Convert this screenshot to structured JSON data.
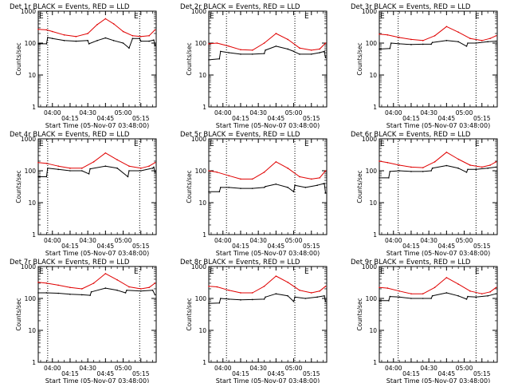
{
  "figure": {
    "background": "#ffffff",
    "axis_color": "#000000",
    "events_color": "#000000",
    "lld_color": "#e00000"
  },
  "chart_data": [
    {
      "type": "line",
      "title": "Det 1r BLACK = Events, RED = LLD",
      "corner_labels": [
        "E",
        "E"
      ],
      "xlabel": "Start Time (05-Nov-07 03:48:00)",
      "ylabel": "Counts/sec",
      "yscale": "log",
      "ylim": [
        1,
        1000
      ],
      "xlim": [
        "03:48:00",
        "05:28:00"
      ],
      "xticks": [
        "04:00",
        "04:15",
        "04:30",
        "04:45",
        "05:00",
        "05:15"
      ],
      "yticks": [
        "1",
        "10",
        "100",
        "1000"
      ],
      "vlines": [
        "03:56:00",
        "05:14:00"
      ],
      "series": [
        {
          "name": "Events",
          "color": "#000000",
          "x": [
            "03:48",
            "03:55",
            "03:56",
            "04:00",
            "04:10",
            "04:20",
            "04:30",
            "04:31",
            "04:38",
            "04:45",
            "04:52",
            "05:00",
            "05:05",
            "05:08",
            "05:14",
            "05:15",
            "05:22",
            "05:26",
            "05:27"
          ],
          "y": [
            95,
            95,
            150,
            140,
            120,
            115,
            120,
            95,
            120,
            145,
            120,
            100,
            70,
            140,
            140,
            115,
            115,
            125,
            85
          ]
        },
        {
          "name": "LLD",
          "color": "#e00000",
          "x": [
            "03:48",
            "03:55",
            "04:00",
            "04:10",
            "04:20",
            "04:30",
            "04:38",
            "04:45",
            "04:52",
            "05:00",
            "05:08",
            "05:15",
            "05:22",
            "05:27"
          ],
          "y": [
            270,
            260,
            230,
            180,
            160,
            200,
            380,
            580,
            400,
            230,
            170,
            160,
            170,
            260
          ]
        }
      ]
    },
    {
      "type": "line",
      "title": "Det 2r BLACK = Events, RED = LLD",
      "corner_labels": [
        "E",
        "E"
      ],
      "xlabel": "Start Time (05-Nov-07 03:48:00)",
      "ylabel": "Counts/sec",
      "yscale": "log",
      "ylim": [
        1,
        1000
      ],
      "xlim": [
        "03:48:00",
        "05:28:00"
      ],
      "xticks": [
        "04:00",
        "04:15",
        "04:30",
        "04:45",
        "05:00",
        "05:15"
      ],
      "yticks": [
        "1",
        "10",
        "100",
        "1000"
      ],
      "vlines": [
        "04:03:00",
        "05:01:00"
      ],
      "series": [
        {
          "name": "Events",
          "color": "#000000",
          "x": [
            "03:48",
            "03:57",
            "03:58",
            "04:05",
            "04:15",
            "04:25",
            "04:35",
            "04:36",
            "04:45",
            "04:55",
            "05:00",
            "05:05",
            "05:15",
            "05:22",
            "05:26",
            "05:27"
          ],
          "y": [
            30,
            32,
            55,
            50,
            45,
            45,
            47,
            60,
            80,
            65,
            55,
            45,
            45,
            50,
            55,
            35
          ]
        },
        {
          "name": "LLD",
          "color": "#e00000",
          "x": [
            "03:48",
            "03:55",
            "04:05",
            "04:15",
            "04:25",
            "04:35",
            "04:45",
            "04:55",
            "05:05",
            "05:15",
            "05:22",
            "05:27"
          ],
          "y": [
            95,
            100,
            80,
            62,
            60,
            100,
            200,
            130,
            70,
            60,
            65,
            100
          ]
        }
      ]
    },
    {
      "type": "line",
      "title": "Det 3r BLACK = Events, RED = LLD",
      "corner_labels": [
        "E",
        "E"
      ],
      "xlabel": "Start Time (05-Nov-07 03:48:00)",
      "ylabel": "Counts/sec",
      "yscale": "log",
      "ylim": [
        1,
        1000
      ],
      "xlim": [
        "03:48:00",
        "05:28:00"
      ],
      "xticks": [
        "04:00",
        "04:15",
        "04:30",
        "04:45",
        "05:00",
        "05:15"
      ],
      "yticks": [
        "1",
        "10",
        "100",
        "1000"
      ],
      "vlines": [
        "04:04:00",
        "05:10:00"
      ],
      "series": [
        {
          "name": "Events",
          "color": "#000000",
          "x": [
            "03:48",
            "03:57",
            "03:58",
            "04:05",
            "04:15",
            "04:25",
            "04:32",
            "04:33",
            "04:45",
            "04:55",
            "05:02",
            "05:03",
            "05:10",
            "05:20",
            "05:27"
          ],
          "y": [
            65,
            68,
            100,
            95,
            90,
            92,
            92,
            105,
            120,
            110,
            80,
            100,
            100,
            110,
            115
          ]
        },
        {
          "name": "LLD",
          "color": "#e00000",
          "x": [
            "03:48",
            "03:55",
            "04:05",
            "04:15",
            "04:25",
            "04:35",
            "04:45",
            "04:55",
            "05:05",
            "05:15",
            "05:22",
            "05:27"
          ],
          "y": [
            190,
            180,
            150,
            130,
            120,
            170,
            330,
            220,
            140,
            120,
            140,
            170
          ]
        }
      ]
    },
    {
      "type": "line",
      "title": "Det 4r BLACK = Events, RED = LLD",
      "corner_labels": [
        "E",
        "E"
      ],
      "xlabel": "Start Time (05-Nov-07 03:48:00)",
      "ylabel": "Counts/sec",
      "yscale": "log",
      "ylim": [
        1,
        1000
      ],
      "xlim": [
        "03:48:00",
        "05:28:00"
      ],
      "xticks": [
        "04:00",
        "04:15",
        "04:30",
        "04:45",
        "05:00",
        "05:15"
      ],
      "yticks": [
        "1",
        "10",
        "100",
        "1000"
      ],
      "vlines": [
        "03:56:00",
        "05:14:00"
      ],
      "series": [
        {
          "name": "Events",
          "color": "#000000",
          "x": [
            "03:48",
            "03:55",
            "03:56",
            "04:05",
            "04:15",
            "04:25",
            "04:31",
            "04:32",
            "04:45",
            "04:55",
            "05:04",
            "05:05",
            "05:15",
            "05:25",
            "05:26",
            "05:27"
          ],
          "y": [
            65,
            65,
            120,
            110,
            100,
            100,
            80,
            115,
            140,
            120,
            65,
            100,
            100,
            120,
            130,
            90
          ]
        },
        {
          "name": "LLD",
          "color": "#e00000",
          "x": [
            "03:48",
            "03:55",
            "04:05",
            "04:15",
            "04:25",
            "04:35",
            "04:45",
            "04:55",
            "05:05",
            "05:15",
            "05:22",
            "05:27"
          ],
          "y": [
            180,
            170,
            140,
            120,
            120,
            190,
            360,
            220,
            140,
            120,
            140,
            180
          ]
        }
      ]
    },
    {
      "type": "line",
      "title": "Det 5r BLACK = Events, RED = LLD",
      "corner_labels": [
        "E",
        "E"
      ],
      "xlabel": "Start Time (05-Nov-07 03:48:00)",
      "ylabel": "Counts/sec",
      "yscale": "log",
      "ylim": [
        1,
        1000
      ],
      "xlim": [
        "03:48:00",
        "05:28:00"
      ],
      "xticks": [
        "04:00",
        "04:15",
        "04:30",
        "04:45",
        "05:00",
        "05:15"
      ],
      "yticks": [
        "1",
        "10",
        "100",
        "1000"
      ],
      "vlines": [
        "04:03:00",
        "05:01:00"
      ],
      "series": [
        {
          "name": "Events",
          "color": "#000000",
          "x": [
            "03:48",
            "03:57",
            "03:58",
            "04:05",
            "04:15",
            "04:25",
            "04:35",
            "04:36",
            "04:45",
            "04:55",
            "05:00",
            "05:01",
            "05:10",
            "05:20",
            "05:26",
            "05:27"
          ],
          "y": [
            22,
            22,
            30,
            30,
            28,
            28,
            30,
            32,
            38,
            30,
            22,
            35,
            30,
            35,
            40,
            20
          ]
        },
        {
          "name": "LLD",
          "color": "#e00000",
          "x": [
            "03:48",
            "03:55",
            "04:05",
            "04:15",
            "04:25",
            "04:35",
            "04:45",
            "04:55",
            "05:05",
            "05:15",
            "05:22",
            "05:27"
          ],
          "y": [
            100,
            90,
            70,
            55,
            55,
            90,
            190,
            120,
            65,
            55,
            60,
            100
          ]
        }
      ]
    },
    {
      "type": "line",
      "title": "Det 6r BLACK = Events, RED = LLD",
      "corner_labels": [
        "E",
        "E"
      ],
      "xlabel": "Start Time (05-Nov-07 03:48:00)",
      "ylabel": "Counts/sec",
      "yscale": "log",
      "ylim": [
        1,
        1000
      ],
      "xlim": [
        "03:48:00",
        "05:28:00"
      ],
      "xticks": [
        "04:00",
        "04:15",
        "04:30",
        "04:45",
        "05:00",
        "05:15"
      ],
      "yticks": [
        "1",
        "10",
        "100",
        "1000"
      ],
      "vlines": [
        "04:04:00",
        "05:10:00"
      ],
      "series": [
        {
          "name": "Events",
          "color": "#000000",
          "x": [
            "03:48",
            "03:56",
            "03:57",
            "04:05",
            "04:15",
            "04:25",
            "04:32",
            "04:33",
            "04:45",
            "04:55",
            "05:02",
            "05:03",
            "05:10",
            "05:20",
            "05:27"
          ],
          "y": [
            60,
            60,
            95,
            100,
            95,
            95,
            100,
            120,
            145,
            120,
            90,
            110,
            110,
            120,
            130
          ]
        },
        {
          "name": "LLD",
          "color": "#e00000",
          "x": [
            "03:48",
            "03:55",
            "04:05",
            "04:15",
            "04:25",
            "04:35",
            "04:45",
            "04:55",
            "05:05",
            "05:15",
            "05:22",
            "05:27"
          ],
          "y": [
            200,
            180,
            150,
            130,
            125,
            190,
            380,
            230,
            150,
            130,
            150,
            190
          ]
        }
      ]
    },
    {
      "type": "line",
      "title": "Det 7r BLACK = Events, RED = LLD",
      "corner_labels": [
        "E",
        "E"
      ],
      "xlabel": "Start Time (05-Nov-07 03:48:00)",
      "ylabel": "Counts/sec",
      "yscale": "log",
      "ylim": [
        1,
        1000
      ],
      "xlim": [
        "03:48:00",
        "05:28:00"
      ],
      "xticks": [
        "04:00",
        "04:15",
        "04:30",
        "04:45",
        "05:00",
        "05:15"
      ],
      "yticks": [
        "1",
        "10",
        "100",
        "1000"
      ],
      "vlines": [
        "03:56:00",
        "05:14:00"
      ],
      "series": [
        {
          "name": "Events",
          "color": "#000000",
          "x": [
            "03:48",
            "03:55",
            "04:05",
            "04:15",
            "04:25",
            "04:32",
            "04:33",
            "04:45",
            "04:55",
            "05:02",
            "05:03",
            "05:15",
            "05:25",
            "05:27"
          ],
          "y": [
            150,
            150,
            145,
            135,
            130,
            125,
            160,
            210,
            180,
            150,
            180,
            170,
            180,
            130
          ]
        },
        {
          "name": "LLD",
          "color": "#e00000",
          "x": [
            "03:48",
            "03:55",
            "04:05",
            "04:15",
            "04:25",
            "04:35",
            "04:45",
            "04:55",
            "05:05",
            "05:15",
            "05:22",
            "05:27"
          ],
          "y": [
            320,
            300,
            260,
            220,
            200,
            300,
            600,
            380,
            230,
            200,
            220,
            300
          ]
        }
      ]
    },
    {
      "type": "line",
      "title": "Det 8r BLACK = Events, RED = LLD",
      "corner_labels": [
        "E",
        "E"
      ],
      "xlabel": "Start Time (05-Nov-07 03:48:00)",
      "ylabel": "Counts/sec",
      "yscale": "log",
      "ylim": [
        1,
        1000
      ],
      "xlim": [
        "03:48:00",
        "05:28:00"
      ],
      "xticks": [
        "04:00",
        "04:15",
        "04:30",
        "04:45",
        "05:00",
        "05:15"
      ],
      "yticks": [
        "1",
        "10",
        "100",
        "1000"
      ],
      "vlines": [
        "04:03:00",
        "05:01:00"
      ],
      "series": [
        {
          "name": "Events",
          "color": "#000000",
          "x": [
            "03:48",
            "03:57",
            "03:58",
            "04:05",
            "04:15",
            "04:25",
            "04:35",
            "04:36",
            "04:45",
            "04:55",
            "05:00",
            "05:01",
            "05:10",
            "05:20",
            "05:26",
            "05:27"
          ],
          "y": [
            70,
            72,
            100,
            95,
            90,
            92,
            95,
            110,
            140,
            120,
            80,
            110,
            100,
            110,
            120,
            80
          ]
        },
        {
          "name": "LLD",
          "color": "#e00000",
          "x": [
            "03:48",
            "03:55",
            "04:05",
            "04:15",
            "04:25",
            "04:35",
            "04:45",
            "04:55",
            "05:05",
            "05:15",
            "05:22",
            "05:27"
          ],
          "y": [
            240,
            230,
            180,
            150,
            150,
            240,
            500,
            320,
            180,
            150,
            170,
            240
          ]
        }
      ]
    },
    {
      "type": "line",
      "title": "Det 9r BLACK = Events, RED = LLD",
      "corner_labels": [
        "E",
        "E"
      ],
      "xlabel": "Start Time (05-Nov-07 03:48:00)",
      "ylabel": "Counts/sec",
      "yscale": "log",
      "ylim": [
        1,
        1000
      ],
      "xlim": [
        "03:48:00",
        "05:28:00"
      ],
      "xticks": [
        "04:00",
        "04:15",
        "04:30",
        "04:45",
        "05:00",
        "05:15"
      ],
      "yticks": [
        "1",
        "10",
        "100",
        "1000"
      ],
      "vlines": [
        "04:04:00",
        "05:10:00"
      ],
      "series": [
        {
          "name": "Events",
          "color": "#000000",
          "x": [
            "03:48",
            "03:56",
            "03:57",
            "04:05",
            "04:15",
            "04:25",
            "04:32",
            "04:33",
            "04:45",
            "04:55",
            "05:02",
            "05:03",
            "05:10",
            "05:20",
            "05:27"
          ],
          "y": [
            85,
            85,
            115,
            110,
            100,
            100,
            100,
            120,
            150,
            120,
            95,
            115,
            110,
            120,
            140
          ]
        },
        {
          "name": "LLD",
          "color": "#e00000",
          "x": [
            "03:48",
            "03:55",
            "04:05",
            "04:15",
            "04:25",
            "04:35",
            "04:45",
            "04:55",
            "05:05",
            "05:15",
            "05:22",
            "05:27"
          ],
          "y": [
            220,
            210,
            170,
            140,
            140,
            220,
            450,
            280,
            170,
            140,
            160,
            220
          ]
        }
      ]
    }
  ]
}
